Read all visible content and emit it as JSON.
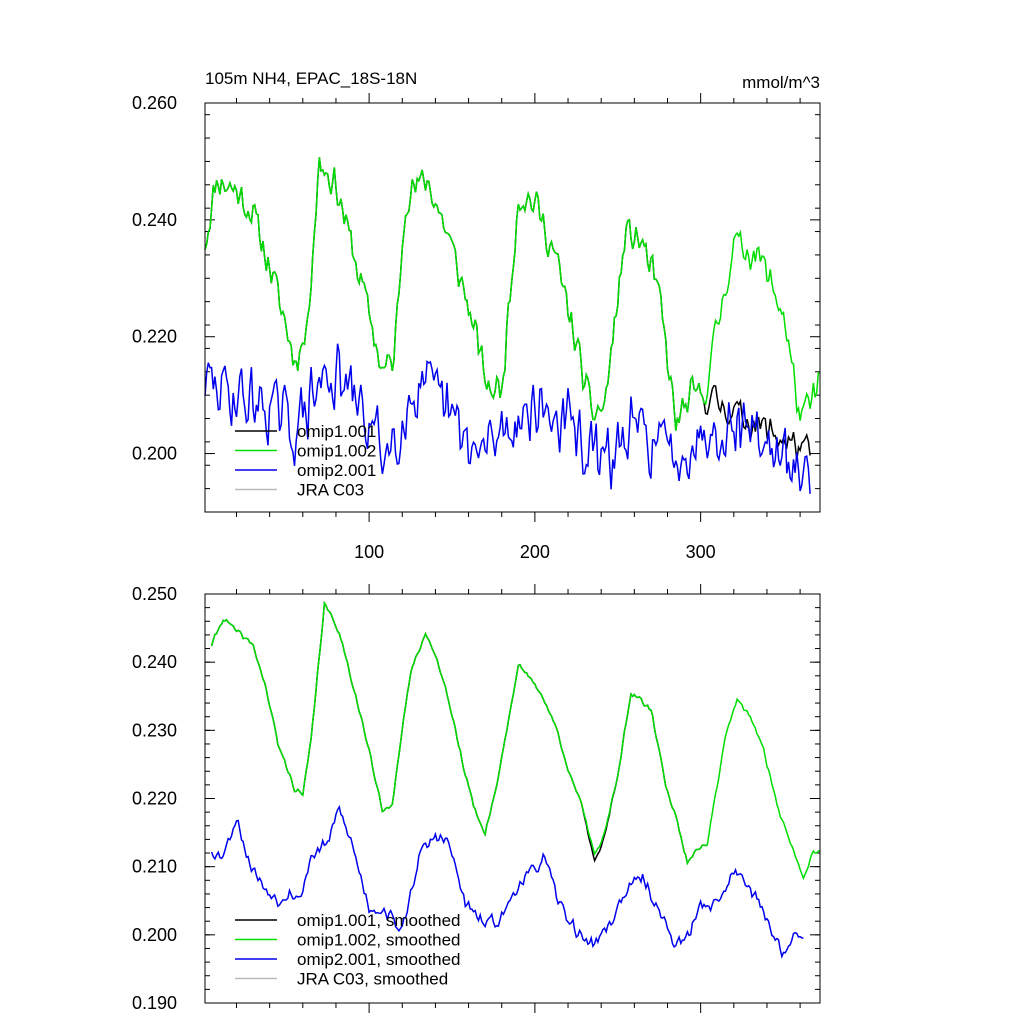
{
  "chart_data": [
    {
      "type": "line",
      "title": "105m NH4, EPAC_18S-18N",
      "units": "mmol/m^3",
      "xlim": [
        1,
        372
      ],
      "ylim": [
        0.19,
        0.26
      ],
      "x_ticks": [
        100,
        200,
        300
      ],
      "x_tick_labels": [
        "100",
        "200",
        "300"
      ],
      "y_ticks": [
        0.2,
        0.22,
        0.24,
        0.26
      ],
      "y_tick_labels": [
        "0.200",
        "0.220",
        "0.240",
        "0.260"
      ],
      "legend": {
        "position": "lower-left",
        "entries": [
          "omip1.001",
          "omip1.002",
          "omip2.001",
          "JRA C03"
        ]
      },
      "series": [
        {
          "name": "omip1.001",
          "color": "#000000",
          "x_range": [
            1,
            366
          ],
          "keypoints": [
            [
              1,
              0.236
            ],
            [
              8,
              0.247
            ],
            [
              20,
              0.245
            ],
            [
              30,
              0.241
            ],
            [
              40,
              0.232
            ],
            [
              48,
              0.224
            ],
            [
              55,
              0.216
            ],
            [
              62,
              0.22
            ],
            [
              70,
              0.25
            ],
            [
              80,
              0.246
            ],
            [
              90,
              0.235
            ],
            [
              100,
              0.224
            ],
            [
              108,
              0.214
            ],
            [
              115,
              0.216
            ],
            [
              122,
              0.244
            ],
            [
              135,
              0.247
            ],
            [
              148,
              0.237
            ],
            [
              160,
              0.225
            ],
            [
              172,
              0.211
            ],
            [
              180,
              0.211
            ],
            [
              190,
              0.244
            ],
            [
              200,
              0.243
            ],
            [
              212,
              0.234
            ],
            [
              224,
              0.22
            ],
            [
              234,
              0.207
            ],
            [
              242,
              0.208
            ],
            [
              255,
              0.238
            ],
            [
              265,
              0.236
            ],
            [
              275,
              0.227
            ],
            [
              285,
              0.205
            ],
            [
              295,
              0.21
            ],
            [
              302,
              0.21
            ],
            [
              366,
              0.2
            ]
          ],
          "noise_amplitude": 0.0035,
          "noise_seed": 11
        },
        {
          "name": "omip1.002",
          "color": "#00dd00",
          "x_range": [
            1,
            372
          ],
          "keypoints": [
            [
              1,
              0.236
            ],
            [
              8,
              0.247
            ],
            [
              20,
              0.245
            ],
            [
              30,
              0.241
            ],
            [
              40,
              0.232
            ],
            [
              48,
              0.224
            ],
            [
              55,
              0.216
            ],
            [
              62,
              0.22
            ],
            [
              70,
              0.25
            ],
            [
              80,
              0.246
            ],
            [
              90,
              0.235
            ],
            [
              100,
              0.224
            ],
            [
              108,
              0.214
            ],
            [
              115,
              0.216
            ],
            [
              122,
              0.244
            ],
            [
              135,
              0.247
            ],
            [
              148,
              0.237
            ],
            [
              160,
              0.225
            ],
            [
              172,
              0.211
            ],
            [
              180,
              0.211
            ],
            [
              190,
              0.244
            ],
            [
              200,
              0.243
            ],
            [
              212,
              0.234
            ],
            [
              224,
              0.22
            ],
            [
              234,
              0.207
            ],
            [
              242,
              0.208
            ],
            [
              255,
              0.238
            ],
            [
              265,
              0.236
            ],
            [
              275,
              0.227
            ],
            [
              285,
              0.205
            ],
            [
              295,
              0.21
            ],
            [
              302,
              0.21
            ],
            [
              320,
              0.236
            ],
            [
              335,
              0.234
            ],
            [
              350,
              0.224
            ],
            [
              360,
              0.206
            ],
            [
              366,
              0.208
            ],
            [
              372,
              0.213
            ]
          ],
          "noise_amplitude": 0.0035,
          "noise_seed": 11
        },
        {
          "name": "omip2.001",
          "color": "#0000ee",
          "x_range": [
            1,
            366
          ],
          "keypoints": [
            [
              1,
              0.212
            ],
            [
              20,
              0.21
            ],
            [
              40,
              0.208
            ],
            [
              55,
              0.204
            ],
            [
              75,
              0.214
            ],
            [
              90,
              0.21
            ],
            [
              110,
              0.2
            ],
            [
              130,
              0.212
            ],
            [
              145,
              0.208
            ],
            [
              165,
              0.199
            ],
            [
              180,
              0.204
            ],
            [
              200,
              0.208
            ],
            [
              220,
              0.205
            ],
            [
              240,
              0.198
            ],
            [
              260,
              0.204
            ],
            [
              285,
              0.2
            ],
            [
              310,
              0.205
            ],
            [
              330,
              0.205
            ],
            [
              350,
              0.198
            ],
            [
              366,
              0.196
            ]
          ],
          "noise_amplitude": 0.007,
          "noise_seed": 29
        },
        {
          "name": "JRA C03",
          "color": "#bbbbbb",
          "x_range": [],
          "keypoints": []
        }
      ]
    },
    {
      "type": "line",
      "title": "",
      "xlim": [
        1,
        372
      ],
      "ylim": [
        0.19,
        0.25
      ],
      "x_ticks": [
        100,
        200,
        300
      ],
      "y_ticks": [
        0.19,
        0.2,
        0.21,
        0.22,
        0.23,
        0.24,
        0.25
      ],
      "y_tick_labels": [
        "0.190",
        "0.200",
        "0.210",
        "0.220",
        "0.230",
        "0.240",
        "0.250"
      ],
      "legend": {
        "position": "lower-left",
        "entries": [
          "omip1.001, smoothed",
          "omip1.002, smoothed",
          "omip2.001, smoothed",
          "JRA C03, smoothed"
        ]
      },
      "series": [
        {
          "name": "omip1.001, smoothed",
          "color": "#000000",
          "x_range": [
            5,
            304
          ],
          "keypoints": [
            [
              5,
              0.2425
            ],
            [
              12,
              0.2465
            ],
            [
              20,
              0.2445
            ],
            [
              30,
              0.2425
            ],
            [
              38,
              0.236
            ],
            [
              45,
              0.228
            ],
            [
              55,
              0.2215
            ],
            [
              60,
              0.2205
            ],
            [
              65,
              0.2285
            ],
            [
              73,
              0.2485
            ],
            [
              82,
              0.2445
            ],
            [
              92,
              0.235
            ],
            [
              100,
              0.227
            ],
            [
              108,
              0.218
            ],
            [
              114,
              0.2195
            ],
            [
              125,
              0.2385
            ],
            [
              134,
              0.2445
            ],
            [
              145,
              0.2375
            ],
            [
              158,
              0.2235
            ],
            [
              165,
              0.2175
            ],
            [
              170,
              0.215
            ],
            [
              177,
              0.222
            ],
            [
              190,
              0.2395
            ],
            [
              200,
              0.237
            ],
            [
              212,
              0.231
            ],
            [
              220,
              0.2245
            ],
            [
              228,
              0.219
            ],
            [
              236,
              0.211
            ],
            [
              241,
              0.2135
            ],
            [
              250,
              0.2235
            ],
            [
              258,
              0.2355
            ],
            [
              270,
              0.233
            ],
            [
              279,
              0.222
            ],
            [
              286,
              0.2165
            ],
            [
              292,
              0.2105
            ],
            [
              297,
              0.2125
            ],
            [
              304,
              0.2135
            ]
          ],
          "noise_amplitude": 0.0005,
          "noise_seed": 41
        },
        {
          "name": "omip1.002, smoothed",
          "color": "#00dd00",
          "x_range": [
            5,
            372
          ],
          "keypoints": [
            [
              5,
              0.2425
            ],
            [
              12,
              0.2465
            ],
            [
              20,
              0.2445
            ],
            [
              30,
              0.2425
            ],
            [
              38,
              0.236
            ],
            [
              45,
              0.228
            ],
            [
              55,
              0.2215
            ],
            [
              60,
              0.2205
            ],
            [
              65,
              0.2285
            ],
            [
              73,
              0.2485
            ],
            [
              82,
              0.2445
            ],
            [
              92,
              0.235
            ],
            [
              100,
              0.227
            ],
            [
              108,
              0.218
            ],
            [
              114,
              0.2195
            ],
            [
              125,
              0.2385
            ],
            [
              134,
              0.2445
            ],
            [
              145,
              0.2375
            ],
            [
              158,
              0.2235
            ],
            [
              165,
              0.2175
            ],
            [
              170,
              0.215
            ],
            [
              177,
              0.222
            ],
            [
              190,
              0.2395
            ],
            [
              200,
              0.237
            ],
            [
              212,
              0.231
            ],
            [
              220,
              0.2245
            ],
            [
              228,
              0.219
            ],
            [
              236,
              0.212
            ],
            [
              241,
              0.214
            ],
            [
              250,
              0.2235
            ],
            [
              258,
              0.2355
            ],
            [
              270,
              0.233
            ],
            [
              279,
              0.222
            ],
            [
              286,
              0.2165
            ],
            [
              292,
              0.2105
            ],
            [
              297,
              0.2125
            ],
            [
              304,
              0.2135
            ],
            [
              315,
              0.229
            ],
            [
              322,
              0.2345
            ],
            [
              330,
              0.232
            ],
            [
              338,
              0.227
            ],
            [
              348,
              0.2175
            ],
            [
              355,
              0.213
            ],
            [
              362,
              0.2085
            ],
            [
              368,
              0.2125
            ],
            [
              372,
              0.212
            ]
          ],
          "noise_amplitude": 0.0005,
          "noise_seed": 41
        },
        {
          "name": "omip2.001, smoothed",
          "color": "#0000ee",
          "x_range": [
            5,
            362
          ],
          "keypoints": [
            [
              5,
              0.2125
            ],
            [
              10,
              0.2115
            ],
            [
              15,
              0.2135
            ],
            [
              20,
              0.2175
            ],
            [
              27,
              0.211
            ],
            [
              35,
              0.2075
            ],
            [
              45,
              0.205
            ],
            [
              52,
              0.2065
            ],
            [
              58,
              0.205
            ],
            [
              65,
              0.2115
            ],
            [
              75,
              0.2135
            ],
            [
              82,
              0.2185
            ],
            [
              90,
              0.213
            ],
            [
              100,
              0.204
            ],
            [
              110,
              0.2035
            ],
            [
              120,
              0.2005
            ],
            [
              130,
              0.2115
            ],
            [
              140,
              0.2145
            ],
            [
              148,
              0.2135
            ],
            [
              158,
              0.2045
            ],
            [
              170,
              0.2015
            ],
            [
              180,
              0.2025
            ],
            [
              190,
              0.2075
            ],
            [
              200,
              0.2095
            ],
            [
              205,
              0.2115
            ],
            [
              215,
              0.2045
            ],
            [
              225,
              0.2005
            ],
            [
              235,
              0.1985
            ],
            [
              245,
              0.2015
            ],
            [
              255,
              0.2065
            ],
            [
              265,
              0.2085
            ],
            [
              275,
              0.2035
            ],
            [
              285,
              0.1985
            ],
            [
              292,
              0.1995
            ],
            [
              300,
              0.2045
            ],
            [
              310,
              0.2045
            ],
            [
              318,
              0.2085
            ],
            [
              325,
              0.2095
            ],
            [
              330,
              0.2065
            ],
            [
              338,
              0.2035
            ],
            [
              345,
              0.1995
            ],
            [
              350,
              0.1975
            ],
            [
              356,
              0.1995
            ],
            [
              362,
              0.1995
            ]
          ],
          "noise_amplitude": 0.0012,
          "noise_seed": 53
        },
        {
          "name": "JRA C03, smoothed",
          "color": "#bbbbbb",
          "x_range": [],
          "keypoints": []
        }
      ]
    }
  ]
}
